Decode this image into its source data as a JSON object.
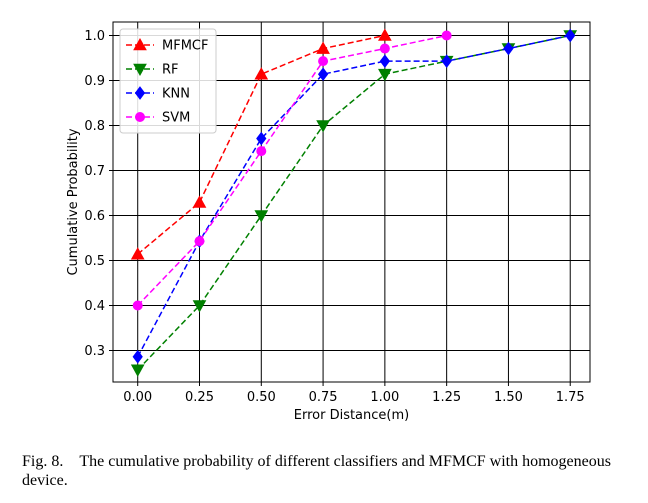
{
  "chart_data": {
    "type": "line",
    "xlabel": "Error Distance(m)",
    "ylabel": "Cumulative Probability",
    "xlim": [
      -0.1,
      1.83
    ],
    "ylim": [
      0.23,
      1.03
    ],
    "xticks": [
      0.0,
      0.25,
      0.5,
      0.75,
      1.0,
      1.25,
      1.5,
      1.75
    ],
    "xtick_labels": [
      "0.00",
      "0.25",
      "0.50",
      "0.75",
      "1.00",
      "1.25",
      "1.50",
      "1.75"
    ],
    "yticks": [
      0.3,
      0.4,
      0.5,
      0.6,
      0.7,
      0.8,
      0.9,
      1.0
    ],
    "ytick_labels": [
      "0.3",
      "0.4",
      "0.5",
      "0.6",
      "0.7",
      "0.8",
      "0.9",
      "1.0"
    ],
    "grid": true,
    "legend_position": "top-left",
    "series": [
      {
        "name": "MFMCF",
        "color": "#ff0000",
        "marker": "triangle-up",
        "x": [
          0.0,
          0.25,
          0.5,
          0.75,
          1.0
        ],
        "y": [
          0.514,
          0.629,
          0.914,
          0.971,
          1.0
        ]
      },
      {
        "name": "RF",
        "color": "#008000",
        "marker": "triangle-down",
        "x": [
          0.0,
          0.25,
          0.5,
          0.75,
          1.0,
          1.25,
          1.5,
          1.75
        ],
        "y": [
          0.257,
          0.4,
          0.6,
          0.8,
          0.914,
          0.943,
          0.971,
          1.0
        ]
      },
      {
        "name": "KNN",
        "color": "#0000ff",
        "marker": "diamond",
        "x": [
          0.0,
          0.25,
          0.5,
          0.75,
          1.0,
          1.25,
          1.5,
          1.75
        ],
        "y": [
          0.286,
          0.543,
          0.771,
          0.914,
          0.943,
          0.943,
          0.971,
          1.0
        ]
      },
      {
        "name": "SVM",
        "color": "#ff00ff",
        "marker": "circle",
        "x": [
          0.0,
          0.25,
          0.5,
          0.75,
          1.0,
          1.25
        ],
        "y": [
          0.4,
          0.543,
          0.743,
          0.943,
          0.971,
          1.0
        ]
      }
    ]
  },
  "caption": {
    "text": "Fig. 8. The cumulative probability of different classifiers and MFMCF with homogeneous device."
  }
}
